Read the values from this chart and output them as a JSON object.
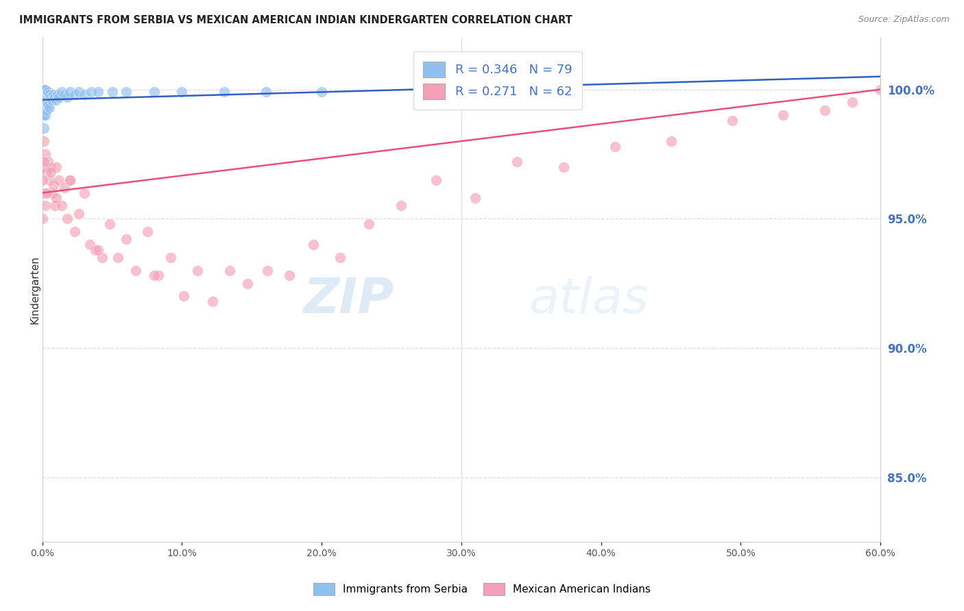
{
  "title": "IMMIGRANTS FROM SERBIA VS MEXICAN AMERICAN INDIAN KINDERGARTEN CORRELATION CHART",
  "source": "Source: ZipAtlas.com",
  "ylabel": "Kindergarten",
  "right_yticks": [
    "100.0%",
    "95.0%",
    "90.0%",
    "85.0%"
  ],
  "right_ytick_vals": [
    1.0,
    0.95,
    0.9,
    0.85
  ],
  "xlim": [
    0.0,
    0.6
  ],
  "ylim": [
    0.825,
    1.02
  ],
  "serbia_R": "0.346",
  "serbia_N": "79",
  "pink_R": "0.271",
  "pink_N": "62",
  "serbia_color": "#90C0EE",
  "pink_color": "#F4A0B8",
  "serbia_line_color": "#3060C0",
  "pink_line_color": "#E8507A",
  "legend_serbia_label": "Immigrants from Serbia",
  "legend_pink_label": "Mexican American Indians",
  "watermark_zip": "ZIP",
  "watermark_atlas": "atlas",
  "serbia_x": [
    0.0,
    0.0,
    0.0,
    0.0,
    0.0,
    0.0,
    0.0,
    0.0,
    0.0,
    0.0,
    0.0,
    0.0,
    0.0,
    0.0,
    0.0,
    0.0,
    0.0,
    0.0,
    0.0,
    0.0,
    0.0,
    0.0,
    0.0,
    0.0,
    0.0,
    0.0,
    0.0,
    0.0,
    0.0,
    0.0,
    0.0,
    0.0,
    0.0,
    0.0,
    0.0,
    0.0,
    0.0,
    0.0,
    0.0,
    0.0,
    0.001,
    0.001,
    0.001,
    0.001,
    0.001,
    0.001,
    0.001,
    0.002,
    0.002,
    0.002,
    0.003,
    0.003,
    0.004,
    0.004,
    0.005,
    0.005,
    0.006,
    0.007,
    0.008,
    0.009,
    0.01,
    0.011,
    0.012,
    0.014,
    0.016,
    0.018,
    0.02,
    0.023,
    0.026,
    0.03,
    0.035,
    0.04,
    0.05,
    0.06,
    0.08,
    0.1,
    0.13,
    0.16,
    0.2
  ],
  "serbia_y": [
    1.0,
    1.0,
    1.0,
    1.0,
    1.0,
    1.0,
    1.0,
    1.0,
    1.0,
    1.0,
    1.0,
    1.0,
    1.0,
    1.0,
    1.0,
    1.0,
    1.0,
    1.0,
    1.0,
    1.0,
    1.0,
    1.0,
    1.0,
    1.0,
    1.0,
    1.0,
    1.0,
    1.0,
    1.0,
    1.0,
    1.0,
    1.0,
    1.0,
    1.0,
    1.0,
    1.0,
    1.0,
    1.0,
    1.0,
    0.99,
    1.0,
    1.0,
    1.0,
    1.0,
    0.995,
    0.99,
    0.985,
    1.0,
    0.995,
    0.99,
    0.998,
    0.992,
    0.999,
    0.994,
    0.998,
    0.993,
    0.997,
    0.996,
    0.998,
    0.997,
    0.996,
    0.998,
    0.997,
    0.999,
    0.998,
    0.997,
    0.999,
    0.998,
    0.999,
    0.998,
    0.999,
    0.999,
    0.999,
    0.999,
    0.999,
    0.999,
    0.999,
    0.999,
    0.999
  ],
  "pink_x": [
    0.0,
    0.0,
    0.001,
    0.001,
    0.002,
    0.002,
    0.003,
    0.004,
    0.005,
    0.006,
    0.007,
    0.008,
    0.009,
    0.01,
    0.012,
    0.014,
    0.016,
    0.018,
    0.02,
    0.023,
    0.026,
    0.03,
    0.034,
    0.038,
    0.043,
    0.048,
    0.054,
    0.06,
    0.067,
    0.075,
    0.083,
    0.092,
    0.101,
    0.111,
    0.122,
    0.134,
    0.147,
    0.161,
    0.177,
    0.194,
    0.213,
    0.234,
    0.257,
    0.282,
    0.31,
    0.34,
    0.373,
    0.41,
    0.45,
    0.494,
    0.53,
    0.56,
    0.58,
    0.6,
    0.0,
    0.001,
    0.003,
    0.006,
    0.01,
    0.02,
    0.04,
    0.08
  ],
  "pink_y": [
    0.97,
    0.95,
    0.98,
    0.96,
    0.975,
    0.955,
    0.968,
    0.972,
    0.965,
    0.97,
    0.96,
    0.963,
    0.955,
    0.97,
    0.965,
    0.955,
    0.962,
    0.95,
    0.965,
    0.945,
    0.952,
    0.96,
    0.94,
    0.938,
    0.935,
    0.948,
    0.935,
    0.942,
    0.93,
    0.945,
    0.928,
    0.935,
    0.92,
    0.93,
    0.918,
    0.93,
    0.925,
    0.93,
    0.928,
    0.94,
    0.935,
    0.948,
    0.955,
    0.965,
    0.958,
    0.972,
    0.97,
    0.978,
    0.98,
    0.988,
    0.99,
    0.992,
    0.995,
    1.0,
    0.965,
    0.972,
    0.96,
    0.968,
    0.958,
    0.965,
    0.938,
    0.928
  ],
  "serbia_line_x0": 0.0,
  "serbia_line_x1": 0.6,
  "serbia_line_y0": 0.996,
  "serbia_line_y1": 1.005,
  "pink_line_x0": 0.0,
  "pink_line_x1": 0.6,
  "pink_line_y0": 0.96,
  "pink_line_y1": 1.0
}
